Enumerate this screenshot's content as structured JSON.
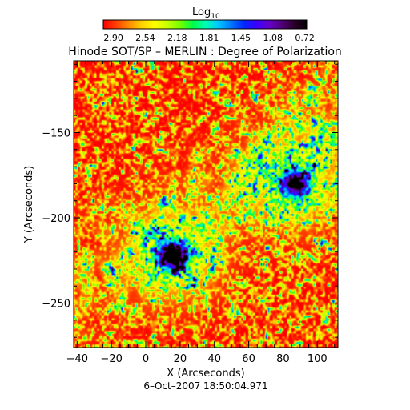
{
  "colorbar": {
    "label": "Log",
    "label_sub": "10",
    "tick_labels": [
      "−2.90",
      "−2.54",
      "−2.18",
      "−1.81",
      "−1.45",
      "−1.08",
      "−0.72"
    ],
    "range": [
      -2.9,
      -0.72
    ],
    "colors": [
      "#ff0000",
      "#ff4000",
      "#ff8c00",
      "#ffd200",
      "#ffff00",
      "#c8ff00",
      "#78ff00",
      "#00ff46",
      "#00ffb4",
      "#00c8ff",
      "#0078ff",
      "#0028ff",
      "#3c00ff",
      "#6400c8",
      "#500078",
      "#280028",
      "#000000"
    ]
  },
  "chart_data": {
    "type": "heatmap",
    "title": "Hinode SOT/SP – MERLIN : Degree of Polarization",
    "xlabel": "X (Arcseconds)",
    "ylabel": "Y (Arcseconds)",
    "xlim": [
      -42,
      112
    ],
    "ylim": [
      -276,
      -108
    ],
    "x_ticks": [
      -40,
      -20,
      0,
      20,
      40,
      60,
      80,
      100
    ],
    "y_ticks": [
      -150,
      -200,
      -250
    ],
    "date_label": "6–Oct–2007 18:50:04.971",
    "value_scale": "log10",
    "value_range": [
      -2.9,
      -0.72
    ],
    "features": [
      {
        "label": "",
        "x": 16,
        "y": -222,
        "strength": 1.0
      },
      {
        "label": "",
        "x": 87,
        "y": -180,
        "strength": 0.9
      }
    ]
  }
}
